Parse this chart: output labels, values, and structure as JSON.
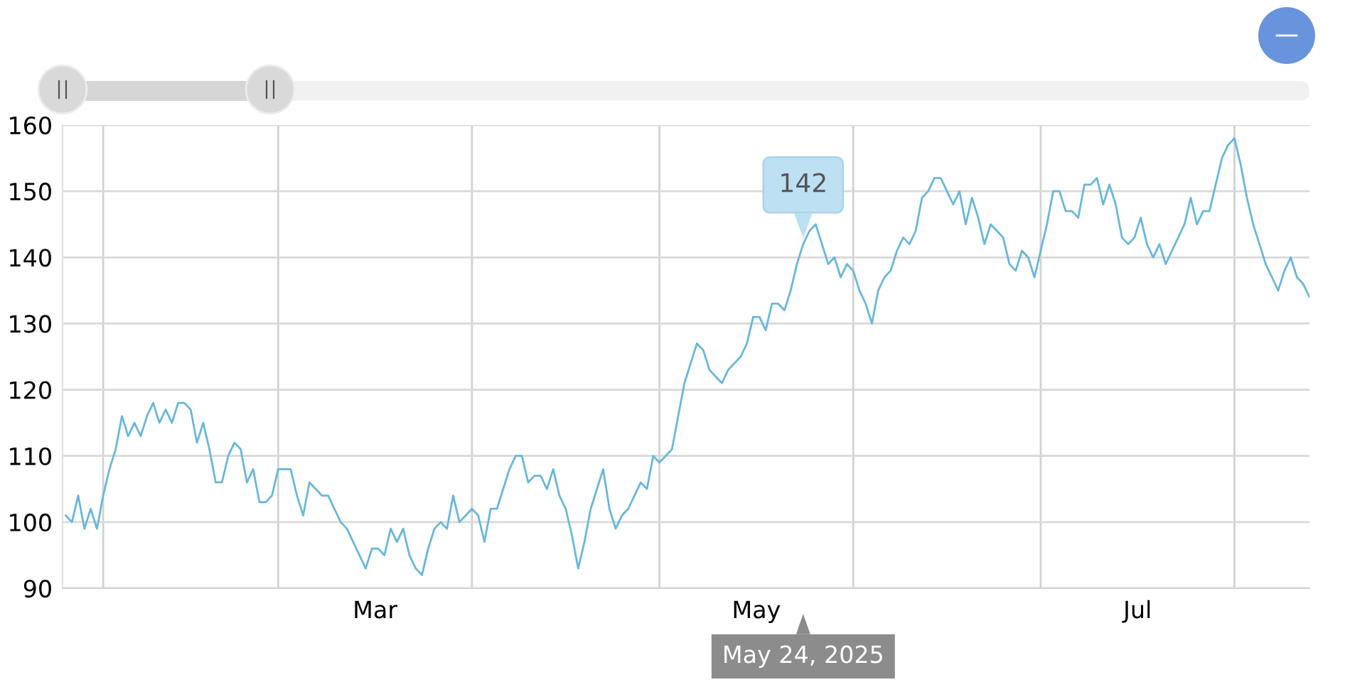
{
  "chart_data": {
    "type": "line",
    "x": [
      "2025-01-26",
      "2025-01-27",
      "2025-01-28",
      "2025-01-29",
      "2025-01-30",
      "2025-01-31",
      "2025-02-01",
      "2025-02-02",
      "2025-02-03",
      "2025-02-04",
      "2025-02-05",
      "2025-02-06",
      "2025-02-07",
      "2025-02-08",
      "2025-02-09",
      "2025-02-10",
      "2025-02-11",
      "2025-02-12",
      "2025-02-13",
      "2025-02-14",
      "2025-02-15",
      "2025-02-16",
      "2025-02-17",
      "2025-02-18",
      "2025-02-19",
      "2025-02-20",
      "2025-02-21",
      "2025-02-22",
      "2025-02-23",
      "2025-02-24",
      "2025-02-25",
      "2025-02-26",
      "2025-02-27",
      "2025-02-28",
      "2025-03-01",
      "2025-03-02",
      "2025-03-03",
      "2025-03-04",
      "2025-03-05",
      "2025-03-06",
      "2025-03-07",
      "2025-03-08",
      "2025-03-09",
      "2025-03-10",
      "2025-03-11",
      "2025-03-12",
      "2025-03-13",
      "2025-03-14",
      "2025-03-15",
      "2025-03-16",
      "2025-03-17",
      "2025-03-18",
      "2025-03-19",
      "2025-03-20",
      "2025-03-21",
      "2025-03-22",
      "2025-03-23",
      "2025-03-24",
      "2025-03-25",
      "2025-03-26",
      "2025-03-27",
      "2025-03-28",
      "2025-03-29",
      "2025-03-30",
      "2025-03-31",
      "2025-04-01",
      "2025-04-02",
      "2025-04-03",
      "2025-04-04",
      "2025-04-05",
      "2025-04-06",
      "2025-04-07",
      "2025-04-08",
      "2025-04-09",
      "2025-04-10",
      "2025-04-11",
      "2025-04-12",
      "2025-04-13",
      "2025-04-14",
      "2025-04-15",
      "2025-04-16",
      "2025-04-17",
      "2025-04-18",
      "2025-04-19",
      "2025-04-20",
      "2025-04-21",
      "2025-04-22",
      "2025-04-23",
      "2025-04-24",
      "2025-04-25",
      "2025-04-26",
      "2025-04-27",
      "2025-04-28",
      "2025-04-29",
      "2025-04-30",
      "2025-05-01",
      "2025-05-02",
      "2025-05-03",
      "2025-05-04",
      "2025-05-05",
      "2025-05-06",
      "2025-05-07",
      "2025-05-08",
      "2025-05-09",
      "2025-05-10",
      "2025-05-11",
      "2025-05-12",
      "2025-05-13",
      "2025-05-14",
      "2025-05-15",
      "2025-05-16",
      "2025-05-17",
      "2025-05-18",
      "2025-05-19",
      "2025-05-20",
      "2025-05-21",
      "2025-05-22",
      "2025-05-23",
      "2025-05-24",
      "2025-05-25",
      "2025-05-26",
      "2025-05-27",
      "2025-05-28",
      "2025-05-29",
      "2025-05-30",
      "2025-05-31",
      "2025-06-01",
      "2025-06-02",
      "2025-06-03",
      "2025-06-04",
      "2025-06-05",
      "2025-06-06",
      "2025-06-07",
      "2025-06-08",
      "2025-06-09",
      "2025-06-10",
      "2025-06-11",
      "2025-06-12",
      "2025-06-13",
      "2025-06-14",
      "2025-06-15",
      "2025-06-16",
      "2025-06-17",
      "2025-06-18",
      "2025-06-19",
      "2025-06-20",
      "2025-06-21",
      "2025-06-22",
      "2025-06-23",
      "2025-06-24",
      "2025-06-25",
      "2025-06-26",
      "2025-06-27",
      "2025-06-28",
      "2025-06-29",
      "2025-06-30",
      "2025-07-01",
      "2025-07-02",
      "2025-07-03",
      "2025-07-04",
      "2025-07-05",
      "2025-07-06",
      "2025-07-07",
      "2025-07-08",
      "2025-07-09",
      "2025-07-10",
      "2025-07-11",
      "2025-07-12",
      "2025-07-13",
      "2025-07-14",
      "2025-07-15",
      "2025-07-16",
      "2025-07-17",
      "2025-07-18",
      "2025-07-19",
      "2025-07-20",
      "2025-07-21",
      "2025-07-22",
      "2025-07-23",
      "2025-07-24",
      "2025-07-25",
      "2025-07-26",
      "2025-07-27",
      "2025-07-28",
      "2025-07-29",
      "2025-07-30",
      "2025-07-31",
      "2025-08-01",
      "2025-08-02",
      "2025-08-03",
      "2025-08-04",
      "2025-08-05",
      "2025-08-06",
      "2025-08-07",
      "2025-08-08",
      "2025-08-09",
      "2025-08-10",
      "2025-08-11",
      "2025-08-12",
      "2025-08-13"
    ],
    "series": [
      {
        "color": "#67b7dc",
        "values": [
          101,
          100,
          104,
          99,
          102,
          99,
          104,
          108,
          111,
          116,
          113,
          115,
          113,
          116,
          118,
          115,
          117,
          115,
          118,
          118,
          117,
          112,
          115,
          111,
          106,
          106,
          110,
          112,
          111,
          106,
          108,
          103,
          103,
          104,
          108,
          108,
          108,
          104,
          101,
          106,
          105,
          104,
          104,
          102,
          100,
          99,
          97,
          95,
          93,
          96,
          96,
          95,
          99,
          97,
          99,
          95,
          93,
          92,
          96,
          99,
          100,
          99,
          104,
          100,
          101,
          102,
          101,
          97,
          102,
          102,
          105,
          108,
          110,
          110,
          106,
          107,
          107,
          105,
          108,
          104,
          102,
          98,
          93,
          97,
          102,
          105,
          108,
          102,
          99,
          101,
          102,
          104,
          106,
          105,
          110,
          109,
          110,
          111,
          116,
          121,
          124,
          127,
          126,
          123,
          122,
          121,
          123,
          124,
          125,
          127,
          131,
          131,
          129,
          133,
          133,
          132,
          135,
          139,
          142,
          144,
          145,
          142,
          139,
          140,
          137,
          139,
          138,
          135,
          133,
          130,
          135,
          137,
          138,
          141,
          143,
          142,
          144,
          149,
          150,
          152,
          152,
          150,
          148,
          150,
          145,
          149,
          146,
          142,
          145,
          144,
          143,
          139,
          138,
          141,
          140,
          137,
          141,
          145,
          150,
          150,
          147,
          147,
          146,
          151,
          151,
          152,
          148,
          151,
          148,
          143,
          142,
          143,
          146,
          142,
          140,
          142,
          139,
          141,
          143,
          145,
          149,
          145,
          147,
          147,
          151,
          155,
          157,
          158,
          154,
          149,
          145,
          142,
          139,
          137,
          135,
          138,
          140,
          137,
          136,
          134
        ]
      }
    ],
    "xlim": [
      "2025-01-25T12:00",
      "2025-08-13T00:00"
    ],
    "xticks": [
      {
        "value": "2025-02-01",
        "label": null
      },
      {
        "value": "2025-03-01",
        "label": null
      },
      {
        "value": "2025-04-01",
        "label": null
      },
      {
        "value": "2025-05-01",
        "label": null
      },
      {
        "value": "2025-06-01",
        "label": null
      },
      {
        "value": "2025-07-01",
        "label": null
      },
      {
        "value": "2025-08-01",
        "label": null
      },
      {
        "value": "2025-03-16T12:00",
        "label": "Mar"
      },
      {
        "value": "2025-05-16T12:00",
        "label": "May"
      },
      {
        "value": "2025-07-16T12:00",
        "label": "Jul"
      }
    ],
    "ylim": [
      90,
      160
    ],
    "yticks": [
      90,
      100,
      110,
      120,
      130,
      140,
      150,
      160
    ],
    "grid": true,
    "annotations": [
      {
        "text": "142",
        "x": "2025-05-24",
        "y": 142
      },
      "May 24, 2025"
    ]
  }
}
